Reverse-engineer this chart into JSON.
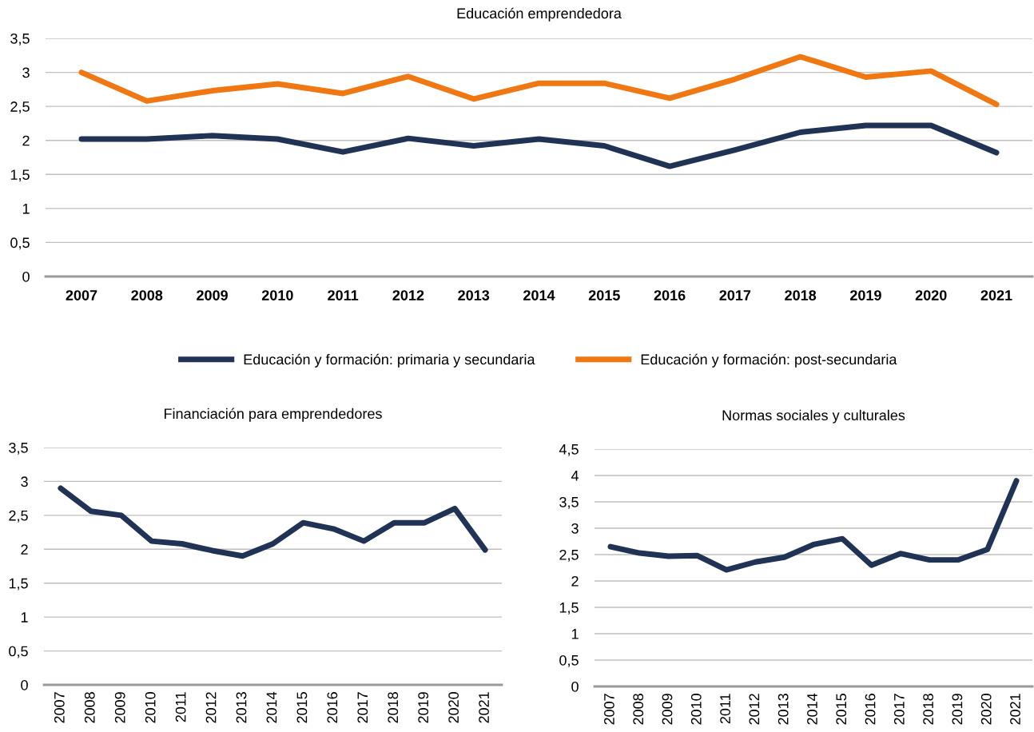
{
  "chart_data": [
    {
      "type": "line",
      "title": "Educación emprendedora",
      "categories": [
        "2007",
        "2008",
        "2009",
        "2010",
        "2011",
        "2012",
        "2013",
        "2014",
        "2015",
        "2016",
        "2017",
        "2018",
        "2019",
        "2020",
        "2021"
      ],
      "series": [
        {
          "name": "Educación y formación: primaria y secundaria",
          "color": "#203354",
          "values": [
            2.02,
            2.02,
            2.07,
            2.02,
            1.83,
            2.03,
            1.92,
            2.02,
            1.92,
            1.62,
            1.86,
            2.12,
            2.22,
            2.22,
            1.82
          ]
        },
        {
          "name": "Educación y formación: post-secundaria",
          "color": "#f07813",
          "values": [
            3.0,
            2.58,
            2.73,
            2.83,
            2.69,
            2.94,
            2.61,
            2.84,
            2.84,
            2.62,
            2.9,
            3.23,
            2.93,
            3.02,
            2.53
          ]
        }
      ],
      "ylim": [
        0,
        3.5
      ],
      "yticks": [
        0,
        {
          "value": 0.5,
          "label": "0,5"
        },
        1,
        {
          "value": 1.5,
          "label": "1,5"
        },
        2,
        {
          "value": 2.5,
          "label": "2,5"
        },
        3,
        {
          "value": 3.5,
          "label": "3,5"
        }
      ],
      "grid": "y",
      "legend": "bottom",
      "marker": "none",
      "line_style": "solid"
    },
    {
      "type": "line",
      "title": "Financiación para emprendedores",
      "categories": [
        "2007",
        "2008",
        "2009",
        "2010",
        "2011",
        "2012",
        "2013",
        "2014",
        "2015",
        "2016",
        "2017",
        "2018",
        "2019",
        "2020",
        "2021"
      ],
      "series": [
        {
          "color": "#203354",
          "values": [
            2.9,
            2.56,
            2.5,
            2.12,
            2.08,
            1.98,
            1.9,
            2.08,
            2.39,
            2.3,
            2.12,
            2.39,
            2.39,
            2.6,
            1.99
          ]
        }
      ],
      "ylim": [
        0,
        3.5
      ],
      "yticks": [
        0,
        {
          "value": 0.5,
          "label": "0,5"
        },
        1,
        {
          "value": 1.5,
          "label": "1,5"
        },
        2,
        {
          "value": 2.5,
          "label": "2,5"
        },
        3,
        {
          "value": 3.5,
          "label": "3,5"
        }
      ],
      "grid": "y",
      "marker": "none",
      "line_style": "solid"
    },
    {
      "type": "line",
      "title": "Normas sociales y culturales",
      "categories": [
        "2007",
        "2008",
        "2009",
        "2010",
        "2011",
        "2012",
        "2013",
        "2014",
        "2015",
        "2016",
        "2017",
        "2018",
        "2019",
        "2020",
        "2021"
      ],
      "series": [
        {
          "color": "#203354",
          "values": [
            2.65,
            2.53,
            2.47,
            2.48,
            2.21,
            2.36,
            2.45,
            2.69,
            2.8,
            2.3,
            2.52,
            2.4,
            2.4,
            2.6,
            3.9
          ]
        }
      ],
      "ylim": [
        0,
        4.5
      ],
      "yticks": [
        0,
        {
          "value": 0.5,
          "label": "0,5"
        },
        1,
        {
          "value": 1.5,
          "label": "1,5"
        },
        2,
        {
          "value": 2.5,
          "label": "2,5"
        },
        3,
        {
          "value": 3.5,
          "label": "3,5"
        },
        4,
        {
          "value": 4.5,
          "label": "4,5"
        }
      ],
      "grid": "y",
      "marker": "none",
      "line_style": "solid"
    }
  ]
}
